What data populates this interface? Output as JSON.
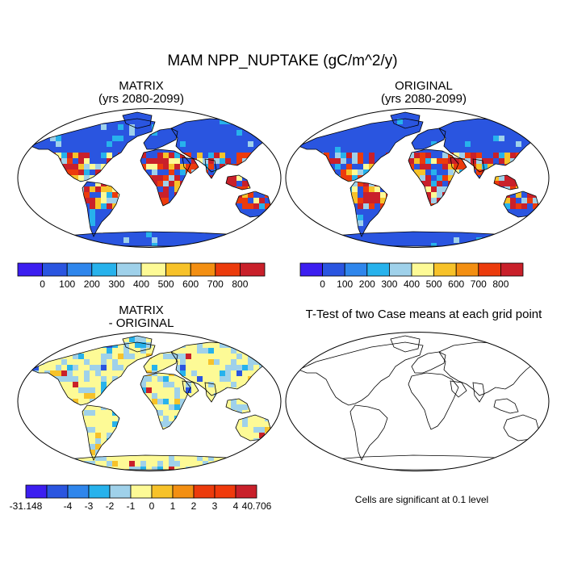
{
  "figure": {
    "title": "MAM NPP_NUPTAKE (gC/m^2/y)"
  },
  "panels": {
    "top_left": {
      "title1": "MATRIX",
      "title2": "(yrs 2080-2099)"
    },
    "top_right": {
      "title1": "ORIGINAL",
      "title2": "(yrs 2080-2099)"
    },
    "bottom_left": {
      "title1": "MATRIX",
      "title2": "- ORIGINAL"
    },
    "bottom_right": {
      "title1": "T-Test of two Case means at each grid point",
      "note": "Cells are significant at 0.1 level"
    }
  },
  "colorbars": {
    "npp": {
      "colors": [
        "#3c1ef0",
        "#2a55e0",
        "#2f86ec",
        "#27b2ec",
        "#9fd1ea",
        "#fdfa96",
        "#f7c229",
        "#f38f12",
        "#ec3b0c",
        "#c9202a"
      ],
      "labels": [
        "0",
        "100",
        "200",
        "300",
        "400",
        "500",
        "600",
        "700",
        "800"
      ]
    },
    "diff": {
      "colors": [
        "#3c1ef0",
        "#2a55e0",
        "#2f86ec",
        "#27b2ec",
        "#9fd1ea",
        "#fdfa96",
        "#f7c229",
        "#f38f12",
        "#ec3b0c",
        "#f03a0c",
        "#c9202a"
      ],
      "labels": [
        "-31.148",
        "-4",
        "-3",
        "-2",
        "-1",
        "0",
        "1",
        "2",
        "3",
        "4",
        "40.706"
      ]
    }
  },
  "colors": {
    "npp_ocean_blue": "#2a55e0",
    "diff_land_yellow": "#fdfa96"
  }
}
